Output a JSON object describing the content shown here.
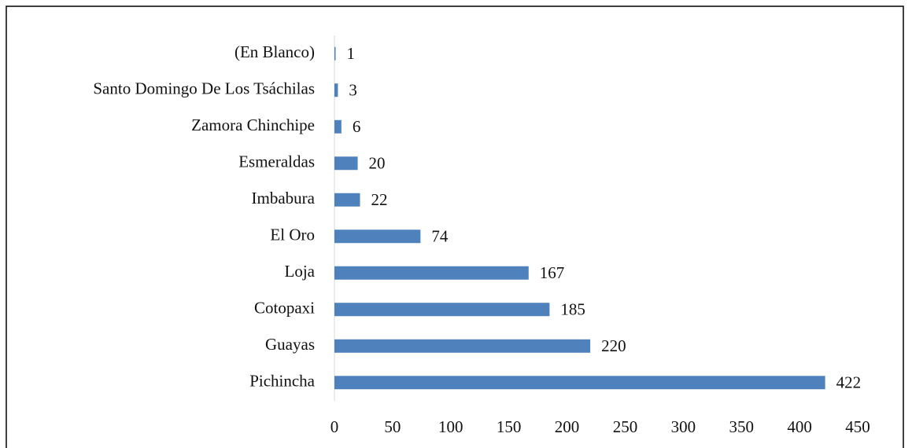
{
  "chart_data": {
    "type": "bar",
    "orientation": "horizontal",
    "categories": [
      "(En Blanco)",
      "Santo Domingo De Los Tsáchilas",
      "Zamora Chinchipe",
      "Esmeraldas",
      "Imbabura",
      "El Oro",
      "Loja",
      "Cotopaxi",
      "Guayas",
      "Pichincha"
    ],
    "values": [
      1,
      3,
      6,
      20,
      22,
      74,
      167,
      185,
      220,
      422
    ],
    "color": "#4f81bd",
    "xlim": [
      0,
      450
    ],
    "xticks": [
      0,
      50,
      100,
      150,
      200,
      250,
      300,
      350,
      400,
      450
    ],
    "grid": false
  }
}
